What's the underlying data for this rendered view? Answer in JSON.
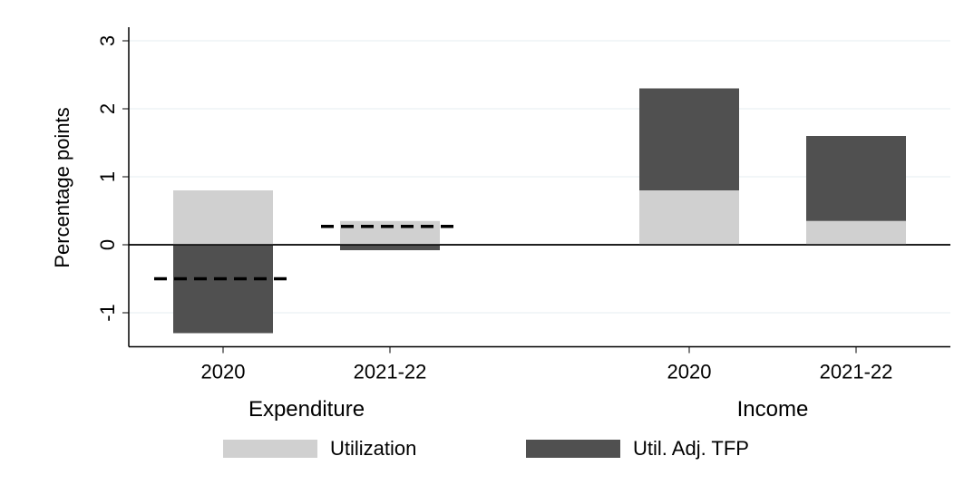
{
  "chart_data": {
    "type": "bar",
    "stacked": true,
    "ylabel": "Percentage points",
    "groups": [
      {
        "label": "Expenditure",
        "categories": [
          "2020",
          "2021-22"
        ]
      },
      {
        "label": "Income",
        "categories": [
          "2020",
          "2021-22"
        ]
      }
    ],
    "series": [
      {
        "name": "Utilization",
        "color": "#d0d0d0",
        "values": [
          0.8,
          0.35,
          0.8,
          0.35
        ]
      },
      {
        "name": "Util. Adj. TFP",
        "color": "#505050",
        "values": [
          -1.3,
          -0.08,
          1.5,
          1.25
        ]
      }
    ],
    "markers": {
      "color": "#000000",
      "values": [
        -0.5,
        0.27,
        null,
        null
      ]
    },
    "ylim": [
      -1.5,
      3.2
    ],
    "yticks": [
      -1,
      0,
      1,
      2,
      3
    ],
    "grid": true
  }
}
